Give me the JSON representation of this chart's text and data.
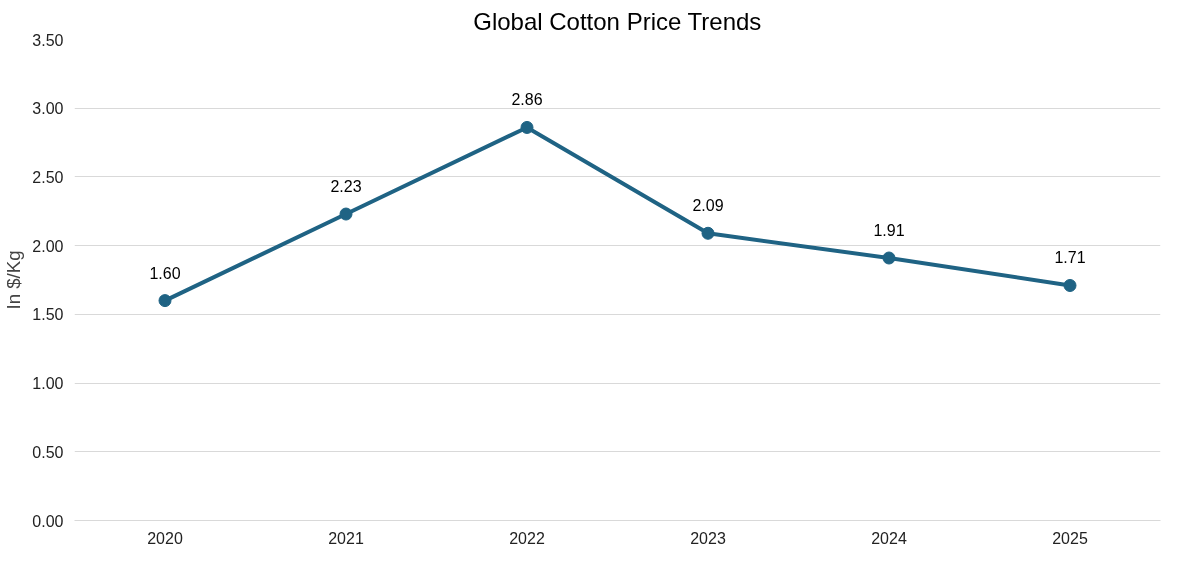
{
  "chart_data": {
    "type": "line",
    "title": "Global Cotton Price Trends",
    "ylabel": "In $/Kg",
    "categories": [
      "2020",
      "2021",
      "2022",
      "2023",
      "2024",
      "2025"
    ],
    "series": [
      {
        "color": "#1f6384",
        "values": [
          1.6,
          2.23,
          2.86,
          2.09,
          1.91,
          1.71
        ],
        "value_labels": [
          "1.60",
          "2.23",
          "2.86",
          "2.09",
          "1.91",
          "1.71"
        ]
      }
    ],
    "ylim": [
      0,
      3.5
    ],
    "yticks": [
      {
        "value": 0,
        "label": "0.00"
      },
      {
        "value": 0.5,
        "label": "0.50"
      },
      {
        "value": 1,
        "label": "1.00"
      },
      {
        "value": 1.5,
        "label": "1.50"
      },
      {
        "value": 2,
        "label": "2.00"
      },
      {
        "value": 2.5,
        "label": "2.50"
      },
      {
        "value": 3,
        "label": "3.00"
      },
      {
        "value": 3.5,
        "label": "3.50"
      }
    ],
    "grid": "y",
    "marker": "circle",
    "line_style": "solid"
  }
}
